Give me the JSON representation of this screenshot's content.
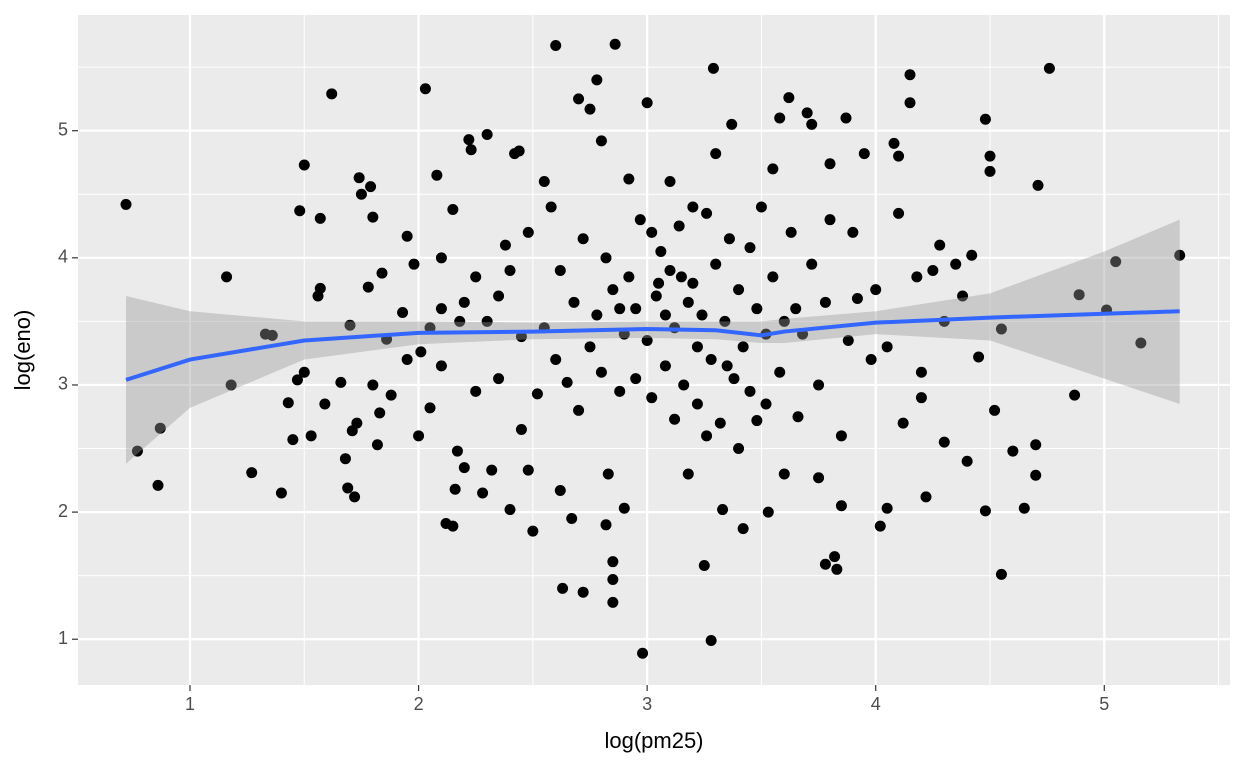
{
  "chart_data": {
    "type": "scatter",
    "x_label": "log(pm25)",
    "y_label": "log(eno)",
    "xlim": [
      0.51,
      5.55
    ],
    "ylim": [
      0.64,
      5.91
    ],
    "xticks": [
      1,
      2,
      3,
      4,
      5
    ],
    "yticks": [
      1,
      2,
      3,
      4,
      5
    ],
    "xminor": [
      1.5,
      2.5,
      3.5,
      4.5,
      5.5
    ],
    "yminor": [
      1.5,
      2.5,
      3.5,
      4.5,
      5.5
    ],
    "grid": true,
    "color": "#000000",
    "x": [
      0.72,
      0.77,
      0.86,
      0.87,
      1.16,
      1.18,
      1.27,
      1.33,
      1.36,
      1.4,
      1.43,
      1.45,
      1.47,
      1.48,
      1.5,
      1.5,
      1.53,
      1.56,
      1.57,
      1.57,
      1.59,
      1.62,
      1.66,
      1.68,
      1.69,
      1.7,
      1.71,
      1.72,
      1.73,
      1.74,
      1.75,
      1.78,
      1.79,
      1.8,
      1.8,
      1.82,
      1.83,
      1.84,
      1.86,
      1.88,
      1.93,
      1.95,
      1.98,
      2.0,
      2.01,
      2.03,
      2.05,
      2.08,
      2.1,
      2.1,
      2.12,
      2.15,
      2.15,
      2.16,
      2.17,
      2.18,
      2.2,
      2.22,
      2.23,
      2.25,
      2.28,
      2.3,
      2.32,
      2.35,
      2.38,
      2.4,
      2.42,
      2.44,
      2.45,
      2.48,
      2.5,
      2.52,
      2.55,
      2.58,
      2.6,
      2.62,
      2.63,
      2.65,
      2.67,
      2.7,
      2.72,
      2.75,
      2.78,
      2.8,
      2.82,
      2.83,
      2.85,
      2.85,
      2.85,
      2.86,
      2.88,
      2.9,
      2.92,
      2.95,
      2.98,
      3.0,
      3.02,
      3.05,
      3.08,
      3.1,
      3.12,
      3.15,
      3.18,
      3.2,
      3.22,
      3.25,
      3.26,
      3.28,
      3.29,
      3.3,
      3.33,
      3.35,
      3.37,
      3.4,
      3.42,
      3.45,
      3.48,
      3.52,
      3.53,
      3.55,
      3.58,
      3.6,
      3.62,
      3.65,
      3.7,
      3.72,
      3.75,
      3.78,
      3.8,
      3.82,
      3.83,
      3.85,
      3.87,
      3.9,
      3.92,
      3.95,
      3.98,
      4.02,
      4.05,
      4.08,
      4.1,
      4.12,
      4.15,
      4.15,
      4.18,
      4.2,
      4.22,
      4.25,
      4.28,
      4.3,
      4.35,
      4.4,
      4.42,
      4.45,
      4.48,
      4.48,
      4.5,
      4.5,
      4.52,
      4.55,
      4.55,
      4.6,
      4.65,
      4.7,
      4.7,
      4.71,
      4.76,
      4.87,
      4.89,
      5.01,
      5.05,
      5.16,
      5.33,
      2.55,
      2.6,
      2.62,
      2.68,
      2.7,
      2.72,
      2.75,
      2.78,
      2.8,
      2.82,
      2.85,
      2.88,
      2.9,
      2.92,
      2.95,
      2.97,
      3.0,
      3.02,
      3.04,
      3.06,
      3.08,
      3.1,
      3.12,
      3.14,
      3.16,
      3.18,
      3.2,
      3.22,
      3.24,
      3.26,
      3.28,
      3.3,
      3.32,
      3.34,
      3.36,
      3.38,
      3.4,
      3.42,
      3.45,
      3.48,
      3.5,
      3.52,
      3.55,
      3.58,
      3.6,
      3.63,
      3.66,
      3.68,
      3.72,
      3.75,
      3.78,
      3.8,
      3.85,
      3.88,
      2.3,
      2.35,
      2.4,
      2.45,
      2.48,
      2.2,
      2.25,
      2.05,
      2.1,
      1.95,
      4.0,
      4.05,
      4.1,
      4.2,
      4.3,
      4.38
    ],
    "values": [
      4.42,
      2.48,
      2.21,
      2.66,
      3.85,
      3.0,
      2.31,
      3.4,
      3.39,
      2.15,
      2.86,
      2.57,
      3.04,
      4.37,
      4.73,
      3.1,
      2.6,
      3.7,
      3.76,
      4.31,
      2.85,
      5.29,
      3.02,
      2.42,
      2.19,
      3.47,
      2.64,
      2.12,
      2.7,
      4.63,
      4.5,
      3.77,
      4.56,
      4.32,
      3.0,
      2.53,
      2.78,
      3.88,
      3.36,
      2.92,
      3.57,
      4.17,
      3.95,
      2.6,
      3.26,
      5.33,
      2.82,
      4.65,
      3.6,
      3.15,
      1.91,
      1.89,
      4.38,
      2.18,
      2.48,
      3.5,
      2.35,
      4.93,
      4.85,
      3.85,
      2.15,
      4.97,
      2.33,
      3.7,
      4.1,
      2.02,
      4.82,
      4.84,
      3.38,
      2.33,
      1.85,
      2.93,
      4.6,
      4.4,
      5.67,
      2.17,
      1.4,
      3.02,
      1.95,
      5.25,
      1.37,
      5.17,
      5.4,
      4.92,
      1.9,
      2.3,
      1.61,
      1.47,
      1.29,
      5.68,
      3.6,
      2.03,
      4.62,
      3.05,
      0.89,
      5.22,
      4.2,
      3.8,
      3.55,
      4.6,
      2.73,
      3.85,
      2.3,
      4.4,
      3.3,
      1.58,
      2.6,
      0.99,
      5.49,
      4.82,
      2.02,
      3.15,
      5.05,
      2.5,
      1.87,
      4.08,
      2.72,
      3.4,
      2.0,
      4.7,
      5.1,
      2.3,
      5.26,
      3.6,
      5.14,
      5.05,
      2.27,
      1.59,
      4.74,
      1.65,
      1.55,
      2.05,
      5.1,
      4.2,
      3.68,
      4.82,
      3.2,
      1.89,
      2.03,
      4.9,
      4.8,
      2.7,
      5.44,
      5.22,
      3.85,
      3.1,
      2.12,
      3.9,
      4.1,
      2.55,
      3.95,
      2.4,
      4.02,
      3.22,
      5.09,
      2.01,
      4.8,
      4.68,
      2.8,
      1.51,
      3.44,
      2.48,
      2.03,
      2.29,
      2.53,
      4.57,
      5.49,
      2.92,
      3.71,
      3.59,
      3.97,
      3.33,
      4.02,
      3.45,
      3.2,
      3.9,
      3.65,
      2.8,
      4.15,
      3.3,
      3.55,
      3.1,
      4.0,
      3.75,
      2.95,
      3.4,
      3.85,
      3.6,
      4.3,
      3.35,
      2.9,
      3.7,
      4.05,
      3.15,
      3.9,
      3.45,
      4.25,
      3.0,
      3.65,
      3.8,
      2.85,
      3.55,
      4.35,
      3.2,
      3.95,
      2.7,
      3.5,
      4.15,
      3.05,
      3.75,
      3.3,
      2.95,
      3.6,
      4.4,
      2.85,
      3.85,
      3.1,
      3.5,
      4.2,
      2.75,
      3.4,
      3.95,
      3.0,
      3.65,
      4.3,
      2.6,
      3.35,
      3.5,
      3.05,
      3.9,
      2.65,
      4.2,
      3.65,
      2.95,
      3.45,
      4.0,
      3.2,
      3.75,
      3.3,
      4.35,
      2.9,
      3.5,
      3.7
    ],
    "smooth": {
      "color": "#3366ff",
      "band_color": "#999999",
      "x": [
        0.72,
        1.0,
        1.5,
        2.0,
        2.5,
        3.0,
        3.3,
        3.5,
        3.6,
        4.0,
        4.5,
        5.0,
        5.33
      ],
      "values": [
        3.04,
        3.2,
        3.35,
        3.41,
        3.42,
        3.44,
        3.43,
        3.39,
        3.42,
        3.49,
        3.53,
        3.56,
        3.58
      ],
      "upper": [
        3.7,
        3.58,
        3.5,
        3.5,
        3.49,
        3.5,
        3.5,
        3.5,
        3.52,
        3.58,
        3.72,
        4.05,
        4.3
      ],
      "lower": [
        2.38,
        2.82,
        3.2,
        3.32,
        3.36,
        3.37,
        3.36,
        3.33,
        3.33,
        3.4,
        3.35,
        3.05,
        2.85
      ]
    }
  }
}
